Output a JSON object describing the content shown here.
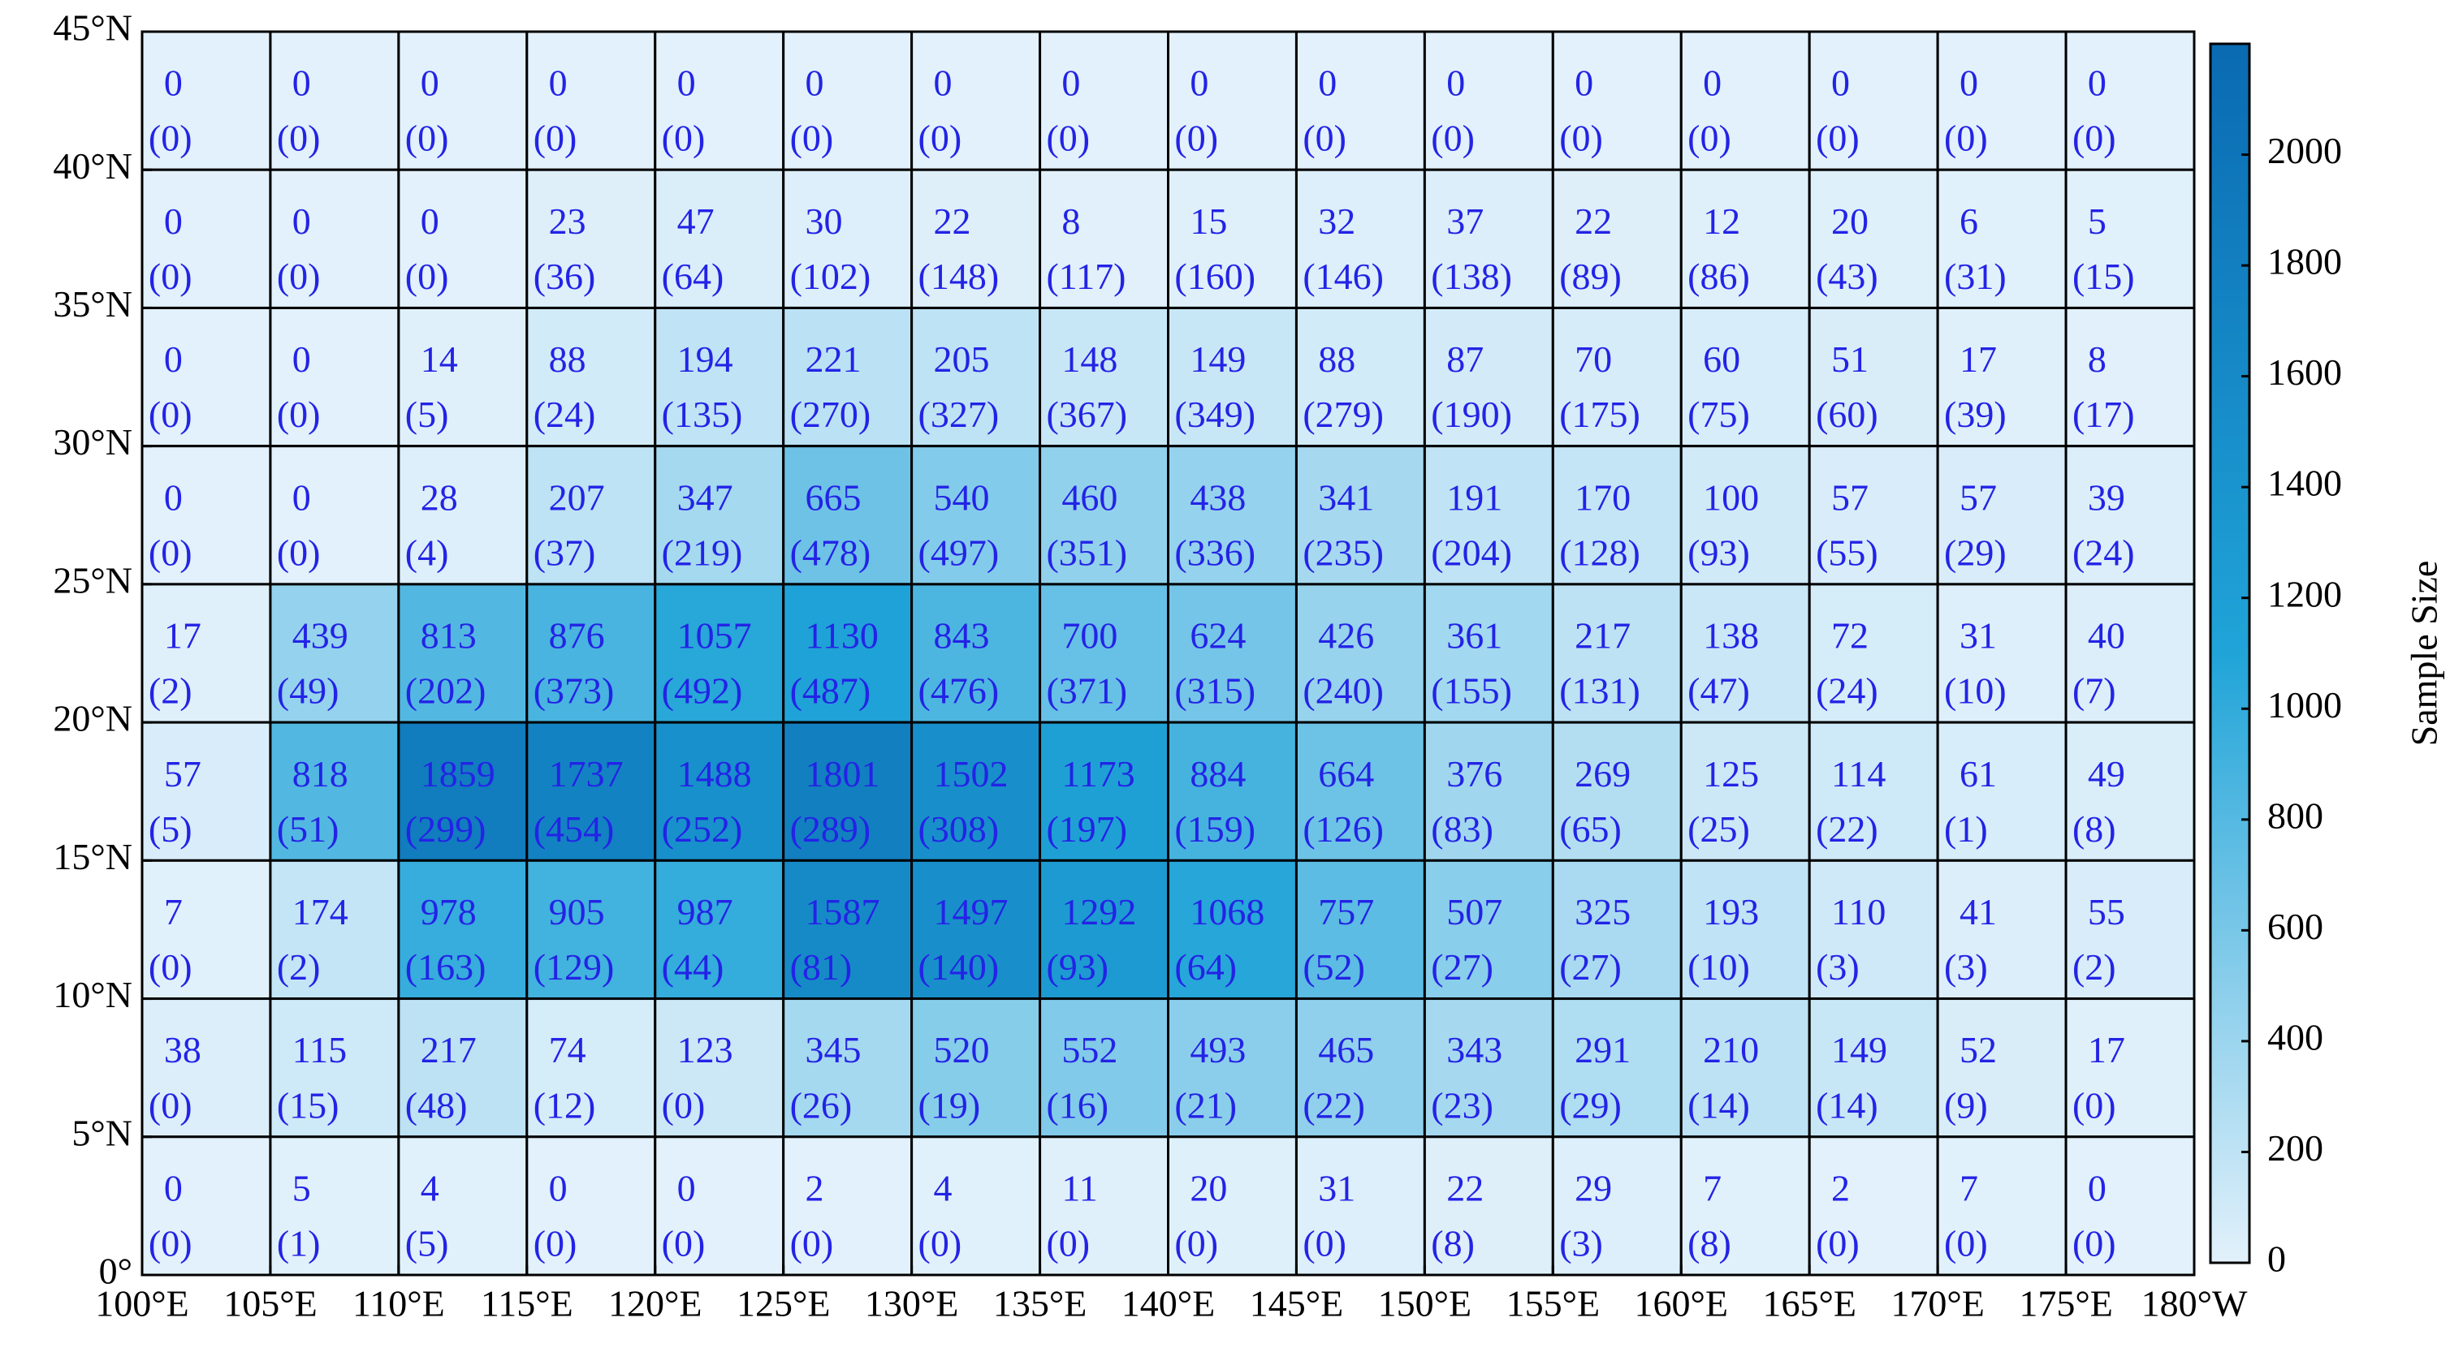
{
  "chart_data": {
    "type": "heatmap",
    "colorbar_label": "Sample Size",
    "clim": [
      0,
      2200
    ],
    "colormap": [
      "#e2f1fb",
      "#20a4d8",
      "#0a6ab2"
    ],
    "cticks": [
      0,
      200,
      400,
      600,
      800,
      1000,
      1200,
      1400,
      1600,
      1800,
      2000
    ],
    "xlim": [
      100,
      180
    ],
    "ylim": [
      0,
      45
    ],
    "xticks": [
      {
        "value": 100,
        "label": "100°E"
      },
      {
        "value": 105,
        "label": "105°E"
      },
      {
        "value": 110,
        "label": "110°E"
      },
      {
        "value": 115,
        "label": "115°E"
      },
      {
        "value": 120,
        "label": "120°E"
      },
      {
        "value": 125,
        "label": "125°E"
      },
      {
        "value": 130,
        "label": "130°E"
      },
      {
        "value": 135,
        "label": "135°E"
      },
      {
        "value": 140,
        "label": "140°E"
      },
      {
        "value": 145,
        "label": "145°E"
      },
      {
        "value": 150,
        "label": "150°E"
      },
      {
        "value": 155,
        "label": "155°E"
      },
      {
        "value": 160,
        "label": "160°E"
      },
      {
        "value": 165,
        "label": "165°E"
      },
      {
        "value": 170,
        "label": "170°E"
      },
      {
        "value": 175,
        "label": "175°E"
      },
      {
        "value": 180,
        "label": "180°W"
      }
    ],
    "yticks": [
      {
        "value": 0,
        "label": "0°"
      },
      {
        "value": 5,
        "label": "5°N"
      },
      {
        "value": 10,
        "label": "10°N"
      },
      {
        "value": 15,
        "label": "15°N"
      },
      {
        "value": 20,
        "label": "20°N"
      },
      {
        "value": 25,
        "label": "25°N"
      },
      {
        "value": 30,
        "label": "30°N"
      },
      {
        "value": 35,
        "label": "35°N"
      },
      {
        "value": 40,
        "label": "40°N"
      },
      {
        "value": 45,
        "label": "45°N"
      }
    ],
    "series": [
      {
        "values": [
          [
            0,
            0,
            0,
            0,
            0,
            0,
            0,
            0,
            0,
            0,
            0,
            0,
            0,
            0,
            0,
            0
          ],
          [
            0,
            0,
            0,
            23,
            47,
            30,
            22,
            8,
            15,
            32,
            37,
            22,
            12,
            20,
            6,
            5
          ],
          [
            0,
            0,
            14,
            88,
            194,
            221,
            205,
            148,
            149,
            88,
            87,
            70,
            60,
            51,
            17,
            8
          ],
          [
            0,
            0,
            28,
            207,
            347,
            665,
            540,
            460,
            438,
            341,
            191,
            170,
            100,
            57,
            57,
            39
          ],
          [
            17,
            439,
            813,
            876,
            1057,
            1130,
            843,
            700,
            624,
            426,
            361,
            217,
            138,
            72,
            31,
            40
          ],
          [
            57,
            818,
            1859,
            1737,
            1488,
            1801,
            1502,
            1173,
            884,
            664,
            376,
            269,
            125,
            114,
            61,
            49
          ],
          [
            7,
            174,
            978,
            905,
            987,
            1587,
            1497,
            1292,
            1068,
            757,
            507,
            325,
            193,
            110,
            41,
            55
          ],
          [
            38,
            115,
            217,
            74,
            123,
            345,
            520,
            552,
            493,
            465,
            343,
            291,
            210,
            149,
            52,
            17
          ],
          [
            0,
            5,
            4,
            0,
            0,
            2,
            4,
            11,
            20,
            31,
            22,
            29,
            7,
            2,
            7,
            0
          ]
        ]
      },
      {
        "values": [
          [
            0,
            0,
            0,
            0,
            0,
            0,
            0,
            0,
            0,
            0,
            0,
            0,
            0,
            0,
            0,
            0
          ],
          [
            0,
            0,
            0,
            36,
            64,
            102,
            148,
            117,
            160,
            146,
            138,
            89,
            86,
            43,
            31,
            15
          ],
          [
            0,
            0,
            5,
            24,
            135,
            270,
            327,
            367,
            349,
            279,
            190,
            175,
            75,
            60,
            39,
            17
          ],
          [
            0,
            0,
            4,
            37,
            219,
            478,
            497,
            351,
            336,
            235,
            204,
            128,
            93,
            55,
            29,
            24
          ],
          [
            2,
            49,
            202,
            373,
            492,
            487,
            476,
            371,
            315,
            240,
            155,
            131,
            47,
            24,
            10,
            7
          ],
          [
            5,
            51,
            299,
            454,
            252,
            289,
            308,
            197,
            159,
            126,
            83,
            65,
            25,
            22,
            1,
            8
          ],
          [
            0,
            2,
            163,
            129,
            44,
            81,
            140,
            93,
            64,
            52,
            27,
            27,
            10,
            3,
            3,
            2
          ],
          [
            0,
            15,
            48,
            12,
            0,
            26,
            19,
            16,
            21,
            22,
            23,
            29,
            14,
            14,
            9,
            0
          ],
          [
            0,
            1,
            5,
            0,
            0,
            0,
            0,
            0,
            0,
            0,
            8,
            3,
            8,
            0,
            0,
            0
          ]
        ],
        "value_labels": [
          [
            "(0)",
            "(0)",
            "(0)",
            "(0)",
            "(0)",
            "(0)",
            "(0)",
            "(0)",
            "(0)",
            "(0)",
            "(0)",
            "(0)",
            "(0)",
            "(0)",
            "(0)",
            "(0)"
          ],
          [
            "(0)",
            "(0)",
            "(0)",
            "(36)",
            "(64)",
            "(102)",
            "(148)",
            "(117)",
            "(160)",
            "(146)",
            "(138)",
            "(89)",
            "(86)",
            "(43)",
            "(31)",
            "(15)"
          ],
          [
            "(0)",
            "(0)",
            "(5)",
            "(24)",
            "(135)",
            "(270)",
            "(327)",
            "(367)",
            "(349)",
            "(279)",
            "(190)",
            "(175)",
            "(75)",
            "(60)",
            "(39)",
            "(17)"
          ],
          [
            "(0)",
            "(0)",
            "(4)",
            "(37)",
            "(219)",
            "(478)",
            "(497)",
            "(351)",
            "(336)",
            "(235)",
            "(204)",
            "(128)",
            "(93)",
            "(55)",
            "(29)",
            "(24)"
          ],
          [
            "(2)",
            "(49)",
            "(202)",
            "(373)",
            "(492)",
            "(487)",
            "(476)",
            "(371)",
            "(315)",
            "(240)",
            "(155)",
            "(131)",
            "(47)",
            "(24)",
            "(10)",
            "(7)"
          ],
          [
            "(5)",
            "(51)",
            "(299)",
            "(454)",
            "(252)",
            "(289)",
            "(308)",
            "(197)",
            "(159)",
            "(126)",
            "(83)",
            "(65)",
            "(25)",
            "(22)",
            "(1)",
            "(8)"
          ],
          [
            "(0)",
            "(2)",
            "(163)",
            "(129)",
            "(44)",
            "(81)",
            "(140)",
            "(93)",
            "(64)",
            "(52)",
            "(27)",
            "(27)",
            "(10)",
            "(3)",
            "(3)",
            "(2)"
          ],
          [
            "(0)",
            "(15)",
            "(48)",
            "(12)",
            "(0)",
            "(26)",
            "(19)",
            "(16)",
            "(21)",
            "(22)",
            "(23)",
            "(29)",
            "(14)",
            "(14)",
            "(9)",
            "(0)"
          ],
          [
            "(0)",
            "(1)",
            "(5)",
            "(0)",
            "(0)",
            "(0)",
            "(0)",
            "(0)",
            "(0)",
            "(0)",
            "(8)",
            "(3)",
            "(8)",
            "(0)",
            "(0)",
            "(0)"
          ]
        ]
      }
    ]
  }
}
